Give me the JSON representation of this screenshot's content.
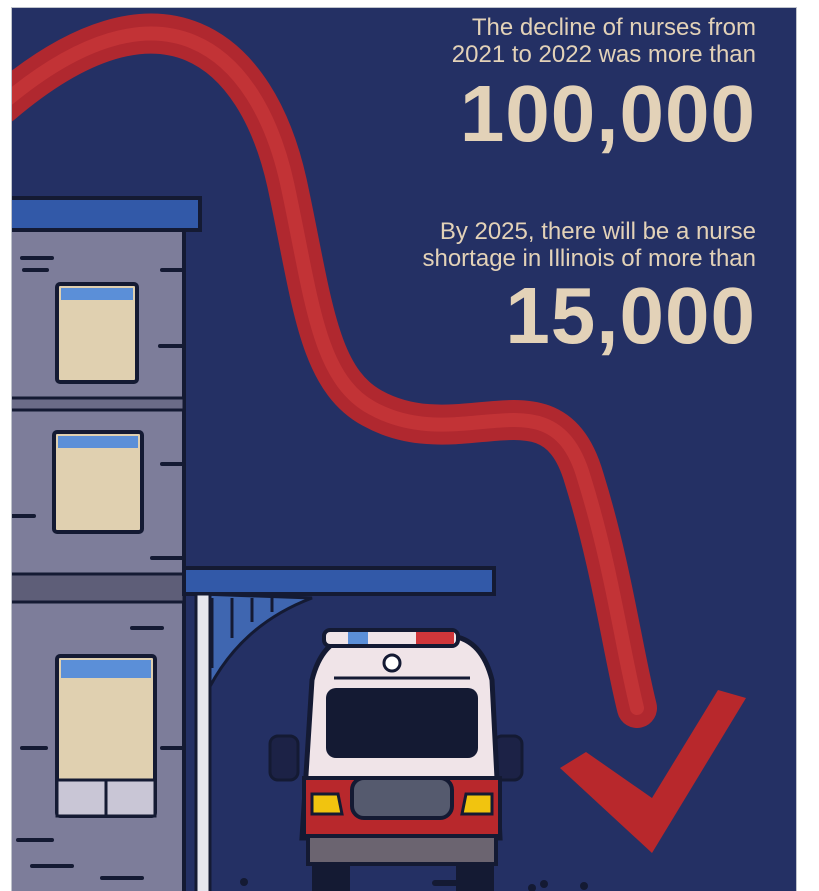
{
  "stats": {
    "decline": {
      "caption_line1": "The decline of nurses from",
      "caption_line2": "2021 to 2022 was more than",
      "number": "100,000"
    },
    "shortage": {
      "caption_line1": "By 2025, there will be a nurse",
      "caption_line2": "shortage in Illinois of more than",
      "number": "15,000"
    }
  },
  "colors": {
    "background": "#243064",
    "text": "#e3d2b8",
    "arrow": "#b8282c",
    "building": "#7d7d9a",
    "window": "#e0d0b0",
    "ambulance": "#f0e4e8"
  },
  "illustration": {
    "elements": [
      "declining-trend-arrow-icon",
      "hospital-building-icon",
      "ambulance-icon"
    ]
  }
}
